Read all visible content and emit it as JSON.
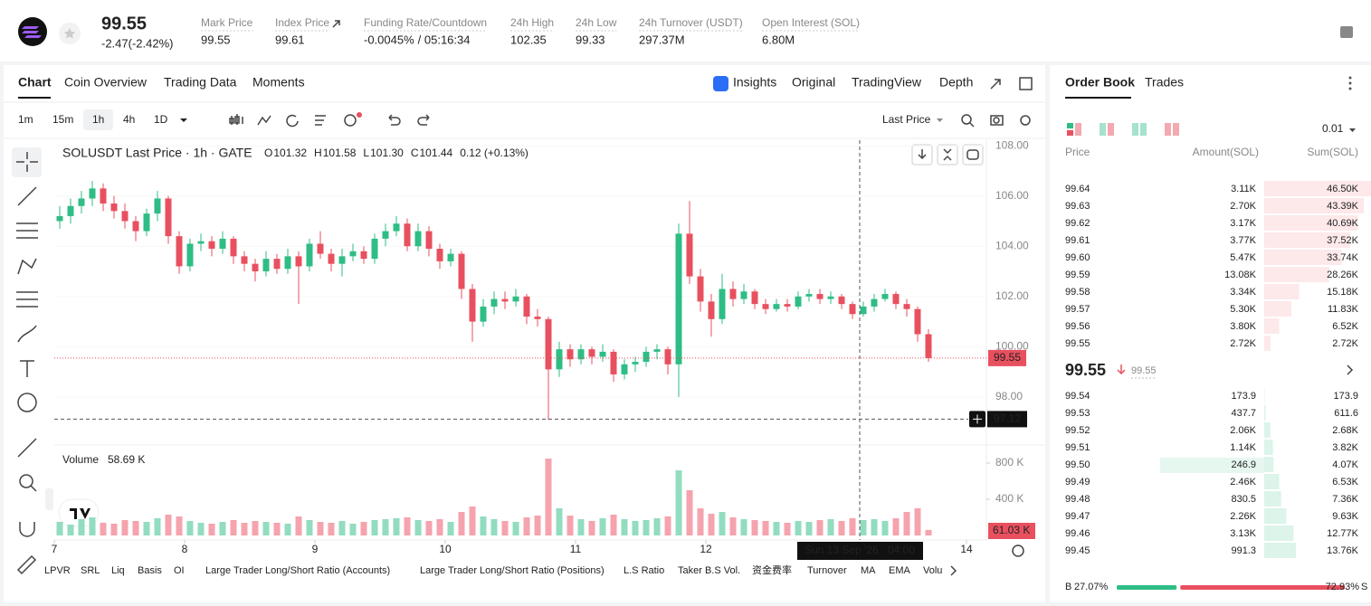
{
  "header": {
    "price": "99.55",
    "change": "-2.47(-2.42%)",
    "stats": [
      {
        "label": "Mark Price",
        "value": "99.55"
      },
      {
        "label": "Index Price",
        "value": "99.61"
      },
      {
        "label": "Funding Rate/Countdown",
        "value": "-0.0045%",
        "countdown": "/ 05:16:34"
      },
      {
        "label": "24h High",
        "value": "102.35"
      },
      {
        "label": "24h Low",
        "value": "99.33"
      },
      {
        "label": "24h Turnover (USDT)",
        "value": "297.37M"
      },
      {
        "label": "Open Interest (SOL)",
        "value": "6.80M"
      }
    ]
  },
  "tabs": [
    "Chart",
    "Coin Overview",
    "Trading Data",
    "Moments"
  ],
  "view_tabs": [
    "Insights",
    "Original",
    "TradingView",
    "Depth"
  ],
  "intervals": [
    "1m",
    "15m",
    "1h",
    "4h",
    "1D"
  ],
  "price_source": "Last Price",
  "indicators": [
    "LPVR",
    "SRL",
    "Liq",
    "Basis",
    "OI",
    "Large Trader Long/Short Ratio (Accounts)",
    "Large Trader Long/Short Ratio (Positions)",
    "L.S Ratio",
    "Taker B.S Vol.",
    "资金费率",
    "Turnover",
    "MA",
    "EMA",
    "Volu"
  ],
  "chart_data": {
    "type": "candlestick",
    "title": "SOLUSDT Last Price · 1h · GATE",
    "ohlc_legend": [
      {
        "key": "O",
        "value": "101.32"
      },
      {
        "key": "H",
        "value": "101.58"
      },
      {
        "key": "L",
        "value": "101.30"
      },
      {
        "key": "C",
        "value": "101.44"
      }
    ],
    "legend_change": "0.12 (+0.13%)",
    "up_color": "#2ebd85",
    "down_color": "#e8505f",
    "candles": [
      [
        105.0,
        105.6,
        104.7,
        105.2
      ],
      [
        105.2,
        105.9,
        104.9,
        105.6
      ],
      [
        105.6,
        106.2,
        105.3,
        105.9
      ],
      [
        105.9,
        106.6,
        105.6,
        106.3
      ],
      [
        106.3,
        106.5,
        105.4,
        105.7
      ],
      [
        105.7,
        106.0,
        105.1,
        105.4
      ],
      [
        105.4,
        105.7,
        104.7,
        105.0
      ],
      [
        105.0,
        105.2,
        104.2,
        104.6
      ],
      [
        104.6,
        105.5,
        104.4,
        105.3
      ],
      [
        105.3,
        106.2,
        105.0,
        105.9
      ],
      [
        105.9,
        106.0,
        104.1,
        104.4
      ],
      [
        104.4,
        104.6,
        102.9,
        103.2
      ],
      [
        103.2,
        104.3,
        103.0,
        104.1
      ],
      [
        104.1,
        104.5,
        103.8,
        104.2
      ],
      [
        104.2,
        104.4,
        103.6,
        103.9
      ],
      [
        103.9,
        104.6,
        103.7,
        104.3
      ],
      [
        104.3,
        104.4,
        103.3,
        103.6
      ],
      [
        103.6,
        103.8,
        103.0,
        103.3
      ],
      [
        103.3,
        103.5,
        102.6,
        103.0
      ],
      [
        103.0,
        103.8,
        102.8,
        103.5
      ],
      [
        103.5,
        103.7,
        102.9,
        103.1
      ],
      [
        103.1,
        103.9,
        102.9,
        103.6
      ],
      [
        103.6,
        103.8,
        101.7,
        103.2
      ],
      [
        103.2,
        104.3,
        103.0,
        104.1
      ],
      [
        104.1,
        104.6,
        103.5,
        103.7
      ],
      [
        103.7,
        103.9,
        103.0,
        103.3
      ],
      [
        103.3,
        103.9,
        102.8,
        103.6
      ],
      [
        103.6,
        104.1,
        103.4,
        103.8
      ],
      [
        103.8,
        104.0,
        103.3,
        103.5
      ],
      [
        103.5,
        104.5,
        103.3,
        104.3
      ],
      [
        104.3,
        104.9,
        104.0,
        104.6
      ],
      [
        104.6,
        105.2,
        104.4,
        104.9
      ],
      [
        104.9,
        105.1,
        103.8,
        104.0
      ],
      [
        104.0,
        104.9,
        103.8,
        104.6
      ],
      [
        104.6,
        104.8,
        103.6,
        103.9
      ],
      [
        103.9,
        104.1,
        103.1,
        103.4
      ],
      [
        103.4,
        103.9,
        103.2,
        103.7
      ],
      [
        103.7,
        103.8,
        101.9,
        102.3
      ],
      [
        102.3,
        102.5,
        100.2,
        101.0
      ],
      [
        101.0,
        101.9,
        100.8,
        101.6
      ],
      [
        101.6,
        102.2,
        101.3,
        101.9
      ],
      [
        101.9,
        102.2,
        101.5,
        101.8
      ],
      [
        101.8,
        102.3,
        101.6,
        102.0
      ],
      [
        102.0,
        102.1,
        100.9,
        101.2
      ],
      [
        101.2,
        101.5,
        100.8,
        101.1
      ],
      [
        101.1,
        101.2,
        97.1,
        99.1
      ],
      [
        99.1,
        100.2,
        98.8,
        99.9
      ],
      [
        99.9,
        100.1,
        99.2,
        99.5
      ],
      [
        99.5,
        100.1,
        99.3,
        99.9
      ],
      [
        99.9,
        100.0,
        99.3,
        99.6
      ],
      [
        99.6,
        100.1,
        99.4,
        99.8
      ],
      [
        99.8,
        99.9,
        98.6,
        98.9
      ],
      [
        98.9,
        99.5,
        98.7,
        99.3
      ],
      [
        99.3,
        99.6,
        99.0,
        99.4
      ],
      [
        99.4,
        100.0,
        99.2,
        99.8
      ],
      [
        99.8,
        100.1,
        99.5,
        99.9
      ],
      [
        99.9,
        100.0,
        98.9,
        99.3
      ],
      [
        99.3,
        104.9,
        98.0,
        104.5
      ],
      [
        104.5,
        105.8,
        102.5,
        102.8
      ],
      [
        102.8,
        103.1,
        101.4,
        101.8
      ],
      [
        101.8,
        102.1,
        100.4,
        101.1
      ],
      [
        101.1,
        102.9,
        100.9,
        102.3
      ],
      [
        102.3,
        102.6,
        101.6,
        101.9
      ],
      [
        101.9,
        102.5,
        101.7,
        102.2
      ],
      [
        102.2,
        102.3,
        101.5,
        101.7
      ],
      [
        101.7,
        101.9,
        101.3,
        101.5
      ],
      [
        101.5,
        101.9,
        101.4,
        101.7
      ],
      [
        101.7,
        101.9,
        101.4,
        101.6
      ],
      [
        101.6,
        102.2,
        101.5,
        102.0
      ],
      [
        102.0,
        102.3,
        101.8,
        102.1
      ],
      [
        102.1,
        102.3,
        101.7,
        101.9
      ],
      [
        101.9,
        102.2,
        101.7,
        102.0
      ],
      [
        102.0,
        102.1,
        101.5,
        101.7
      ],
      [
        101.7,
        101.8,
        101.1,
        101.3
      ],
      [
        101.3,
        101.8,
        101.2,
        101.6
      ],
      [
        101.6,
        102.1,
        101.4,
        101.9
      ],
      [
        101.9,
        102.3,
        101.8,
        102.1
      ],
      [
        102.1,
        102.2,
        101.5,
        101.7
      ],
      [
        101.7,
        101.9,
        101.2,
        101.5
      ],
      [
        101.5,
        101.6,
        100.2,
        100.5
      ],
      [
        100.5,
        100.7,
        99.4,
        99.55
      ]
    ],
    "ylim": [
      96.09,
      108.22
    ],
    "yticks": [
      {
        "value": 98,
        "label": "98.00"
      },
      {
        "value": 100,
        "label": "100.00"
      },
      {
        "value": 102,
        "label": "102.00"
      },
      {
        "value": 104,
        "label": "104.00"
      },
      {
        "value": 106,
        "label": "106.00"
      },
      {
        "value": 108,
        "label": "108.00"
      }
    ],
    "xlim": [
      0,
      86
    ],
    "xticks": [
      {
        "value": 0,
        "label": "7"
      },
      {
        "value": 12,
        "label": "8"
      },
      {
        "value": 24,
        "label": "9"
      },
      {
        "value": 36,
        "label": "10"
      },
      {
        "value": 48,
        "label": "11"
      },
      {
        "value": 60,
        "label": "12"
      },
      {
        "value": 84,
        "label": "14"
      }
    ],
    "last_price": 99.55,
    "last_price_label": "99.55",
    "crosshair_price": 97.12,
    "crosshair_date": "Sun 13 Sep '26",
    "crosshair_time": "04:00",
    "volume_title": "Volume",
    "volume_value": "58.69 K",
    "volumes": [
      150,
      120,
      180,
      200,
      140,
      130,
      170,
      160,
      150,
      190,
      230,
      210,
      160,
      140,
      130,
      150,
      170,
      140,
      160,
      150,
      140,
      130,
      210,
      170,
      150,
      140,
      160,
      130,
      150,
      170,
      180,
      190,
      200,
      170,
      160,
      180,
      150,
      260,
      320,
      210,
      180,
      160,
      150,
      200,
      220,
      850,
      300,
      220,
      180,
      160,
      190,
      230,
      180,
      160,
      170,
      190,
      210,
      720,
      500,
      300,
      240,
      260,
      200,
      180,
      170,
      160,
      150,
      140,
      160,
      150,
      170,
      180,
      160,
      190,
      170,
      180,
      160,
      190,
      260,
      300,
      61.03
    ],
    "last_volume_label": "61.03 K",
    "vlim": [
      0,
      970
    ],
    "vticks": [
      {
        "value": 400,
        "label": "400 K"
      },
      {
        "value": 800,
        "label": "800 K"
      }
    ]
  },
  "order_book": {
    "tabs": [
      "Order Book",
      "Trades"
    ],
    "precision": "0.01",
    "columns": [
      "Price",
      "Amount(SOL)",
      "Sum(SOL)"
    ],
    "asks": {
      "prices": [
        "99.64",
        "99.63",
        "99.62",
        "99.61",
        "99.60",
        "99.59",
        "99.58",
        "99.57",
        "99.56",
        "99.55"
      ],
      "amounts": [
        "3.11K",
        "2.70K",
        "3.17K",
        "3.77K",
        "5.47K",
        "13.08K",
        "3.34K",
        "5.30K",
        "3.80K",
        "2.72K"
      ],
      "sums": [
        46.5,
        43.39,
        40.69,
        37.52,
        33.74,
        28.26,
        15.18,
        11.83,
        6.52,
        2.72
      ],
      "sum_labels": [
        "46.50K",
        "43.39K",
        "40.69K",
        "37.52K",
        "33.74K",
        "28.26K",
        "15.18K",
        "11.83K",
        "6.52K",
        "2.72K"
      ]
    },
    "mid_price": "99.55",
    "mark_price": "99.55",
    "bids": {
      "prices": [
        "99.54",
        "99.53",
        "99.52",
        "99.51",
        "99.50",
        "99.49",
        "99.48",
        "99.47",
        "99.46",
        "99.45"
      ],
      "amounts": [
        "173.9",
        "437.7",
        "2.06K",
        "1.14K",
        "246.9",
        "2.46K",
        "830.5",
        "2.26K",
        "3.13K",
        "991.3"
      ],
      "sums": [
        0.1739,
        0.6116,
        2.68,
        3.82,
        4.07,
        6.53,
        7.36,
        9.63,
        12.77,
        13.76
      ],
      "sum_labels": [
        "173.9",
        "611.6",
        "2.68K",
        "3.82K",
        "4.07K",
        "6.53K",
        "7.36K",
        "9.63K",
        "12.77K",
        "13.76K"
      ]
    },
    "ratio": {
      "buy_label": "B",
      "buy": 27.07,
      "buy_text": "27.07%",
      "sell": 72.93,
      "sell_text": "72.93%",
      "sell_label": "S"
    }
  }
}
